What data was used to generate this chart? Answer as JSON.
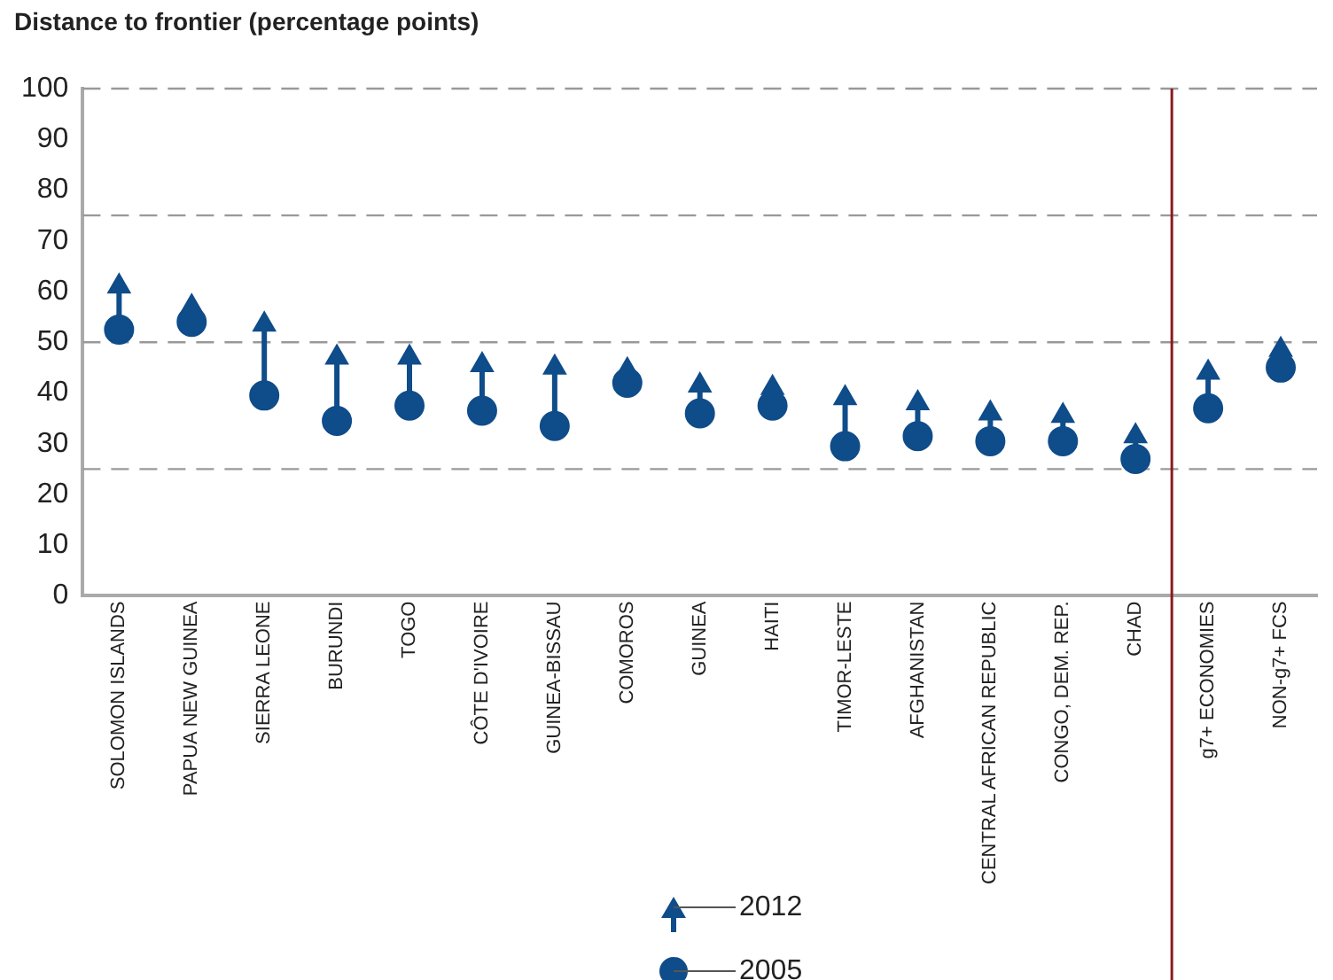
{
  "chart_data": {
    "type": "scatter",
    "title": "Distance to frontier (percentage points)",
    "categories": [
      "SOLOMON ISLANDS",
      "PAPUA NEW GUINEA",
      "SIERRA LEONE",
      "BURUNDI",
      "TOGO",
      "CÔTE D'IVOIRE",
      "GUINEA-BISSAU",
      "COMOROS",
      "GUINEA",
      "HAITI",
      "TIMOR-LESTE",
      "AFGHANISTAN",
      "CENTRAL AFRICAN REPUBLIC",
      "CONGO, DEM. REP.",
      "CHAD",
      "g7+ ECONOMIES",
      "NON-g7+ FCS"
    ],
    "series": [
      {
        "name": "2012",
        "color": "#0f4c8a",
        "marker": "triangle",
        "values": [
          61,
          57,
          53.5,
          47,
          47,
          45.5,
          45,
          44.5,
          41.5,
          41,
          39,
          38,
          36,
          35.5,
          31.5,
          44,
          48.5
        ]
      },
      {
        "name": "2005",
        "color": "#0f4c8a",
        "marker": "circle",
        "values": [
          52.5,
          54,
          39.5,
          34.5,
          37.5,
          36.5,
          33.5,
          42,
          36,
          37.5,
          29.5,
          31.5,
          30.5,
          30.5,
          27,
          37,
          45
        ]
      }
    ],
    "ylim": [
      0,
      100
    ],
    "yticks": [
      0,
      10,
      20,
      30,
      40,
      50,
      60,
      70,
      80,
      90,
      100
    ],
    "ref_lines": [
      {
        "axis": "y",
        "value": 25,
        "color": "#999999",
        "line_style": "dashed"
      },
      {
        "axis": "y",
        "value": 50,
        "color": "#999999",
        "line_style": "dashed"
      },
      {
        "axis": "y",
        "value": 75,
        "color": "#999999",
        "line_style": "dashed"
      },
      {
        "axis": "y",
        "value": 100,
        "color": "#999999",
        "line_style": "dashed"
      },
      {
        "axis": "x",
        "value": "g7+ ECONOMIES",
        "color": "#8b1a1a",
        "line_style": "solid"
      }
    ],
    "grid": false,
    "legend": "bottom"
  }
}
